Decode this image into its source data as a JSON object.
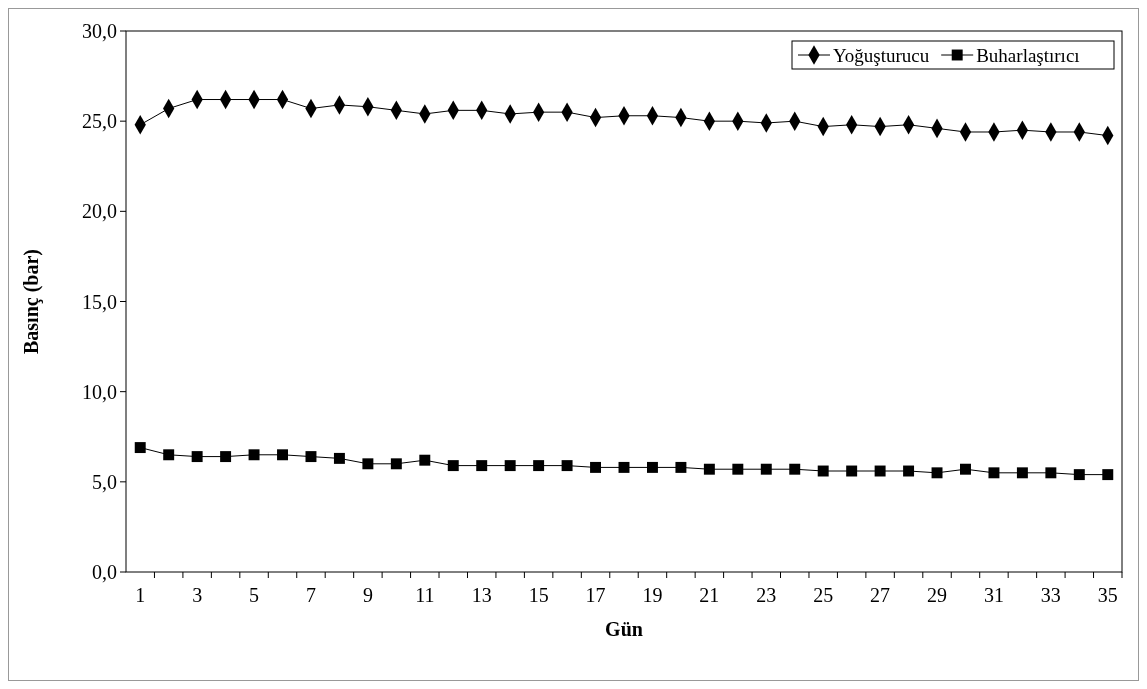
{
  "chart_data": {
    "type": "line",
    "xlabel": "Gün",
    "ylabel": "Basınç (bar)",
    "x": [
      1,
      2,
      3,
      4,
      5,
      6,
      7,
      8,
      9,
      10,
      11,
      12,
      13,
      14,
      15,
      16,
      17,
      18,
      19,
      20,
      21,
      22,
      23,
      24,
      25,
      26,
      27,
      28,
      29,
      30,
      31,
      32,
      33,
      34,
      35
    ],
    "xlim": [
      0.5,
      35.5
    ],
    "xticks": [
      1,
      3,
      5,
      7,
      9,
      11,
      13,
      15,
      17,
      19,
      21,
      23,
      25,
      27,
      29,
      31,
      33,
      35
    ],
    "series": [
      {
        "name": "Yoğuşturucu",
        "color": "#000000",
        "marker": "diamond",
        "values": [
          24.8,
          25.7,
          26.2,
          26.2,
          26.2,
          26.2,
          25.7,
          25.9,
          25.8,
          25.6,
          25.4,
          25.6,
          25.6,
          25.4,
          25.5,
          25.5,
          25.2,
          25.3,
          25.3,
          25.2,
          25.0,
          25.0,
          24.9,
          25.0,
          24.7,
          24.8,
          24.7,
          24.8,
          24.6,
          24.4,
          24.4,
          24.5,
          24.4,
          24.4,
          24.2
        ]
      },
      {
        "name": "Buharlaştırıcı",
        "color": "#000000",
        "marker": "square",
        "values": [
          6.9,
          6.5,
          6.4,
          6.4,
          6.5,
          6.5,
          6.4,
          6.3,
          6.0,
          6.0,
          6.2,
          5.9,
          5.9,
          5.9,
          5.9,
          5.9,
          5.8,
          5.8,
          5.8,
          5.8,
          5.7,
          5.7,
          5.7,
          5.7,
          5.6,
          5.6,
          5.6,
          5.6,
          5.5,
          5.7,
          5.5,
          5.5,
          5.5,
          5.4,
          5.4
        ]
      }
    ],
    "ylim": [
      0,
      30
    ],
    "yticks": [
      {
        "value": 0,
        "label": "0,0"
      },
      {
        "value": 5,
        "label": "5,0"
      },
      {
        "value": 10,
        "label": "10,0"
      },
      {
        "value": 15,
        "label": "15,0"
      },
      {
        "value": 20,
        "label": "20,0"
      },
      {
        "value": 25,
        "label": "25,0"
      },
      {
        "value": 30,
        "label": "30,0"
      }
    ],
    "legend": "top right"
  }
}
